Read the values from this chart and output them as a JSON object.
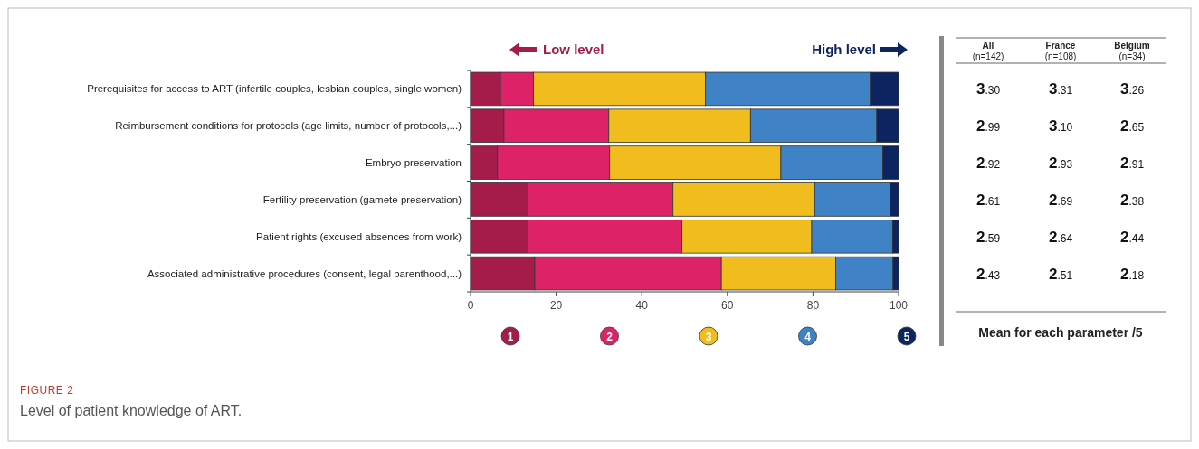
{
  "chart_data": {
    "type": "bar",
    "orientation": "horizontal",
    "stacked": true,
    "title": "FIGURE 2",
    "subtitle": "Level of patient knowledge of ART.",
    "categories": [
      "Prerequisites for access to ART (infertile couples, lesbian couples, single women)",
      "Reimbursement conditions for protocols (age limits, number of protocols,...)",
      "Embryo preservation",
      "Fertility preservation (gamete preservation)",
      "Patient rights (excused absences from work)",
      "Associated administrative procedures (consent, legal parenthood,...)"
    ],
    "series": [
      {
        "name": "1",
        "color": "#a51c4b",
        "values": [
          7.0,
          7.8,
          6.3,
          13.4,
          13.4,
          15.0
        ]
      },
      {
        "name": "2",
        "color": "#de2268",
        "values": [
          7.7,
          24.5,
          26.2,
          33.9,
          36.0,
          43.6
        ]
      },
      {
        "name": "3",
        "color": "#f1bc1e",
        "values": [
          40.2,
          33.1,
          40.0,
          33.1,
          30.3,
          26.7
        ]
      },
      {
        "name": "4",
        "color": "#3f83c6",
        "values": [
          38.5,
          29.5,
          23.8,
          17.6,
          18.9,
          13.4
        ]
      },
      {
        "name": "5",
        "color": "#0c2460",
        "values": [
          6.6,
          5.1,
          3.7,
          2.0,
          1.4,
          1.3
        ]
      }
    ],
    "xlim": [
      0,
      100
    ],
    "xticks": [
      0,
      20,
      40,
      60,
      80,
      100
    ],
    "legend": "bottom",
    "annotations": [
      "Low level",
      "High level",
      "All",
      "(n=142)",
      "France",
      "(n=108)",
      "Belgium",
      "(n=34)",
      "3.30",
      "3.31",
      "3.26",
      "2.99",
      "3.10",
      "2.65",
      "2.92",
      "2.93",
      "2.91",
      "2.61",
      "2.69",
      "2.38",
      "2.59",
      "2.64",
      "2.44",
      "2.43",
      "2.51",
      "2.18",
      "Mean for each parameter /5"
    ]
  }
}
